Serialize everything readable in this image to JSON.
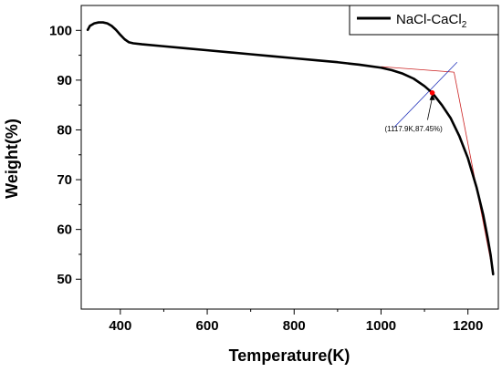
{
  "chart_data": {
    "type": "line",
    "title": "",
    "xlabel": "Temperature(K)",
    "ylabel": "Weight(%)",
    "xlim": [
      310,
      1270
    ],
    "ylim": [
      44,
      105
    ],
    "xticks": [
      400,
      600,
      800,
      1000,
      1200
    ],
    "yticks": [
      50,
      60,
      70,
      80,
      90,
      100
    ],
    "grid": false,
    "legend_position": "top-right",
    "series": [
      {
        "name": "NaCl-CaCl2",
        "color": "#000000",
        "points": [
          [
            325,
            100.1
          ],
          [
            330,
            100.9
          ],
          [
            340,
            101.4
          ],
          [
            350,
            101.6
          ],
          [
            360,
            101.6
          ],
          [
            370,
            101.4
          ],
          [
            380,
            100.9
          ],
          [
            390,
            100.1
          ],
          [
            400,
            99.1
          ],
          [
            410,
            98.2
          ],
          [
            420,
            97.6
          ],
          [
            430,
            97.4
          ],
          [
            450,
            97.2
          ],
          [
            500,
            96.8
          ],
          [
            550,
            96.4
          ],
          [
            600,
            96.0
          ],
          [
            650,
            95.6
          ],
          [
            700,
            95.2
          ],
          [
            750,
            94.8
          ],
          [
            800,
            94.4
          ],
          [
            850,
            94.0
          ],
          [
            900,
            93.6
          ],
          [
            950,
            93.1
          ],
          [
            1000,
            92.5
          ],
          [
            1025,
            92.0
          ],
          [
            1050,
            91.3
          ],
          [
            1075,
            90.3
          ],
          [
            1100,
            88.8
          ],
          [
            1117.9,
            87.45
          ],
          [
            1140,
            85.0
          ],
          [
            1160,
            82.4
          ],
          [
            1180,
            78.8
          ],
          [
            1200,
            74.3
          ],
          [
            1220,
            68.4
          ],
          [
            1235,
            63.0
          ],
          [
            1245,
            58.5
          ],
          [
            1252,
            55.0
          ],
          [
            1258,
            51.0
          ]
        ]
      }
    ],
    "tangent_lines": [
      {
        "color": "#cc2222",
        "points": [
          [
            1000,
            92.7
          ],
          [
            1168,
            91.6
          ]
        ]
      },
      {
        "color": "#cc2222",
        "points": [
          [
            1168,
            91.6
          ],
          [
            1254,
            53.0
          ]
        ]
      },
      {
        "color": "#2233bb",
        "points": [
          [
            1030,
            80.5
          ],
          [
            1175,
            93.6
          ]
        ]
      }
    ],
    "marker": {
      "x": 1117.9,
      "y": 87.45,
      "color": "#ff0000"
    },
    "annotation": {
      "text": "(1117.9K,87.45%)",
      "arrow_from": [
        1107,
        82.0
      ],
      "arrow_to": [
        1117.9,
        87.45
      ],
      "label_at": [
        1075,
        79.7
      ]
    }
  }
}
